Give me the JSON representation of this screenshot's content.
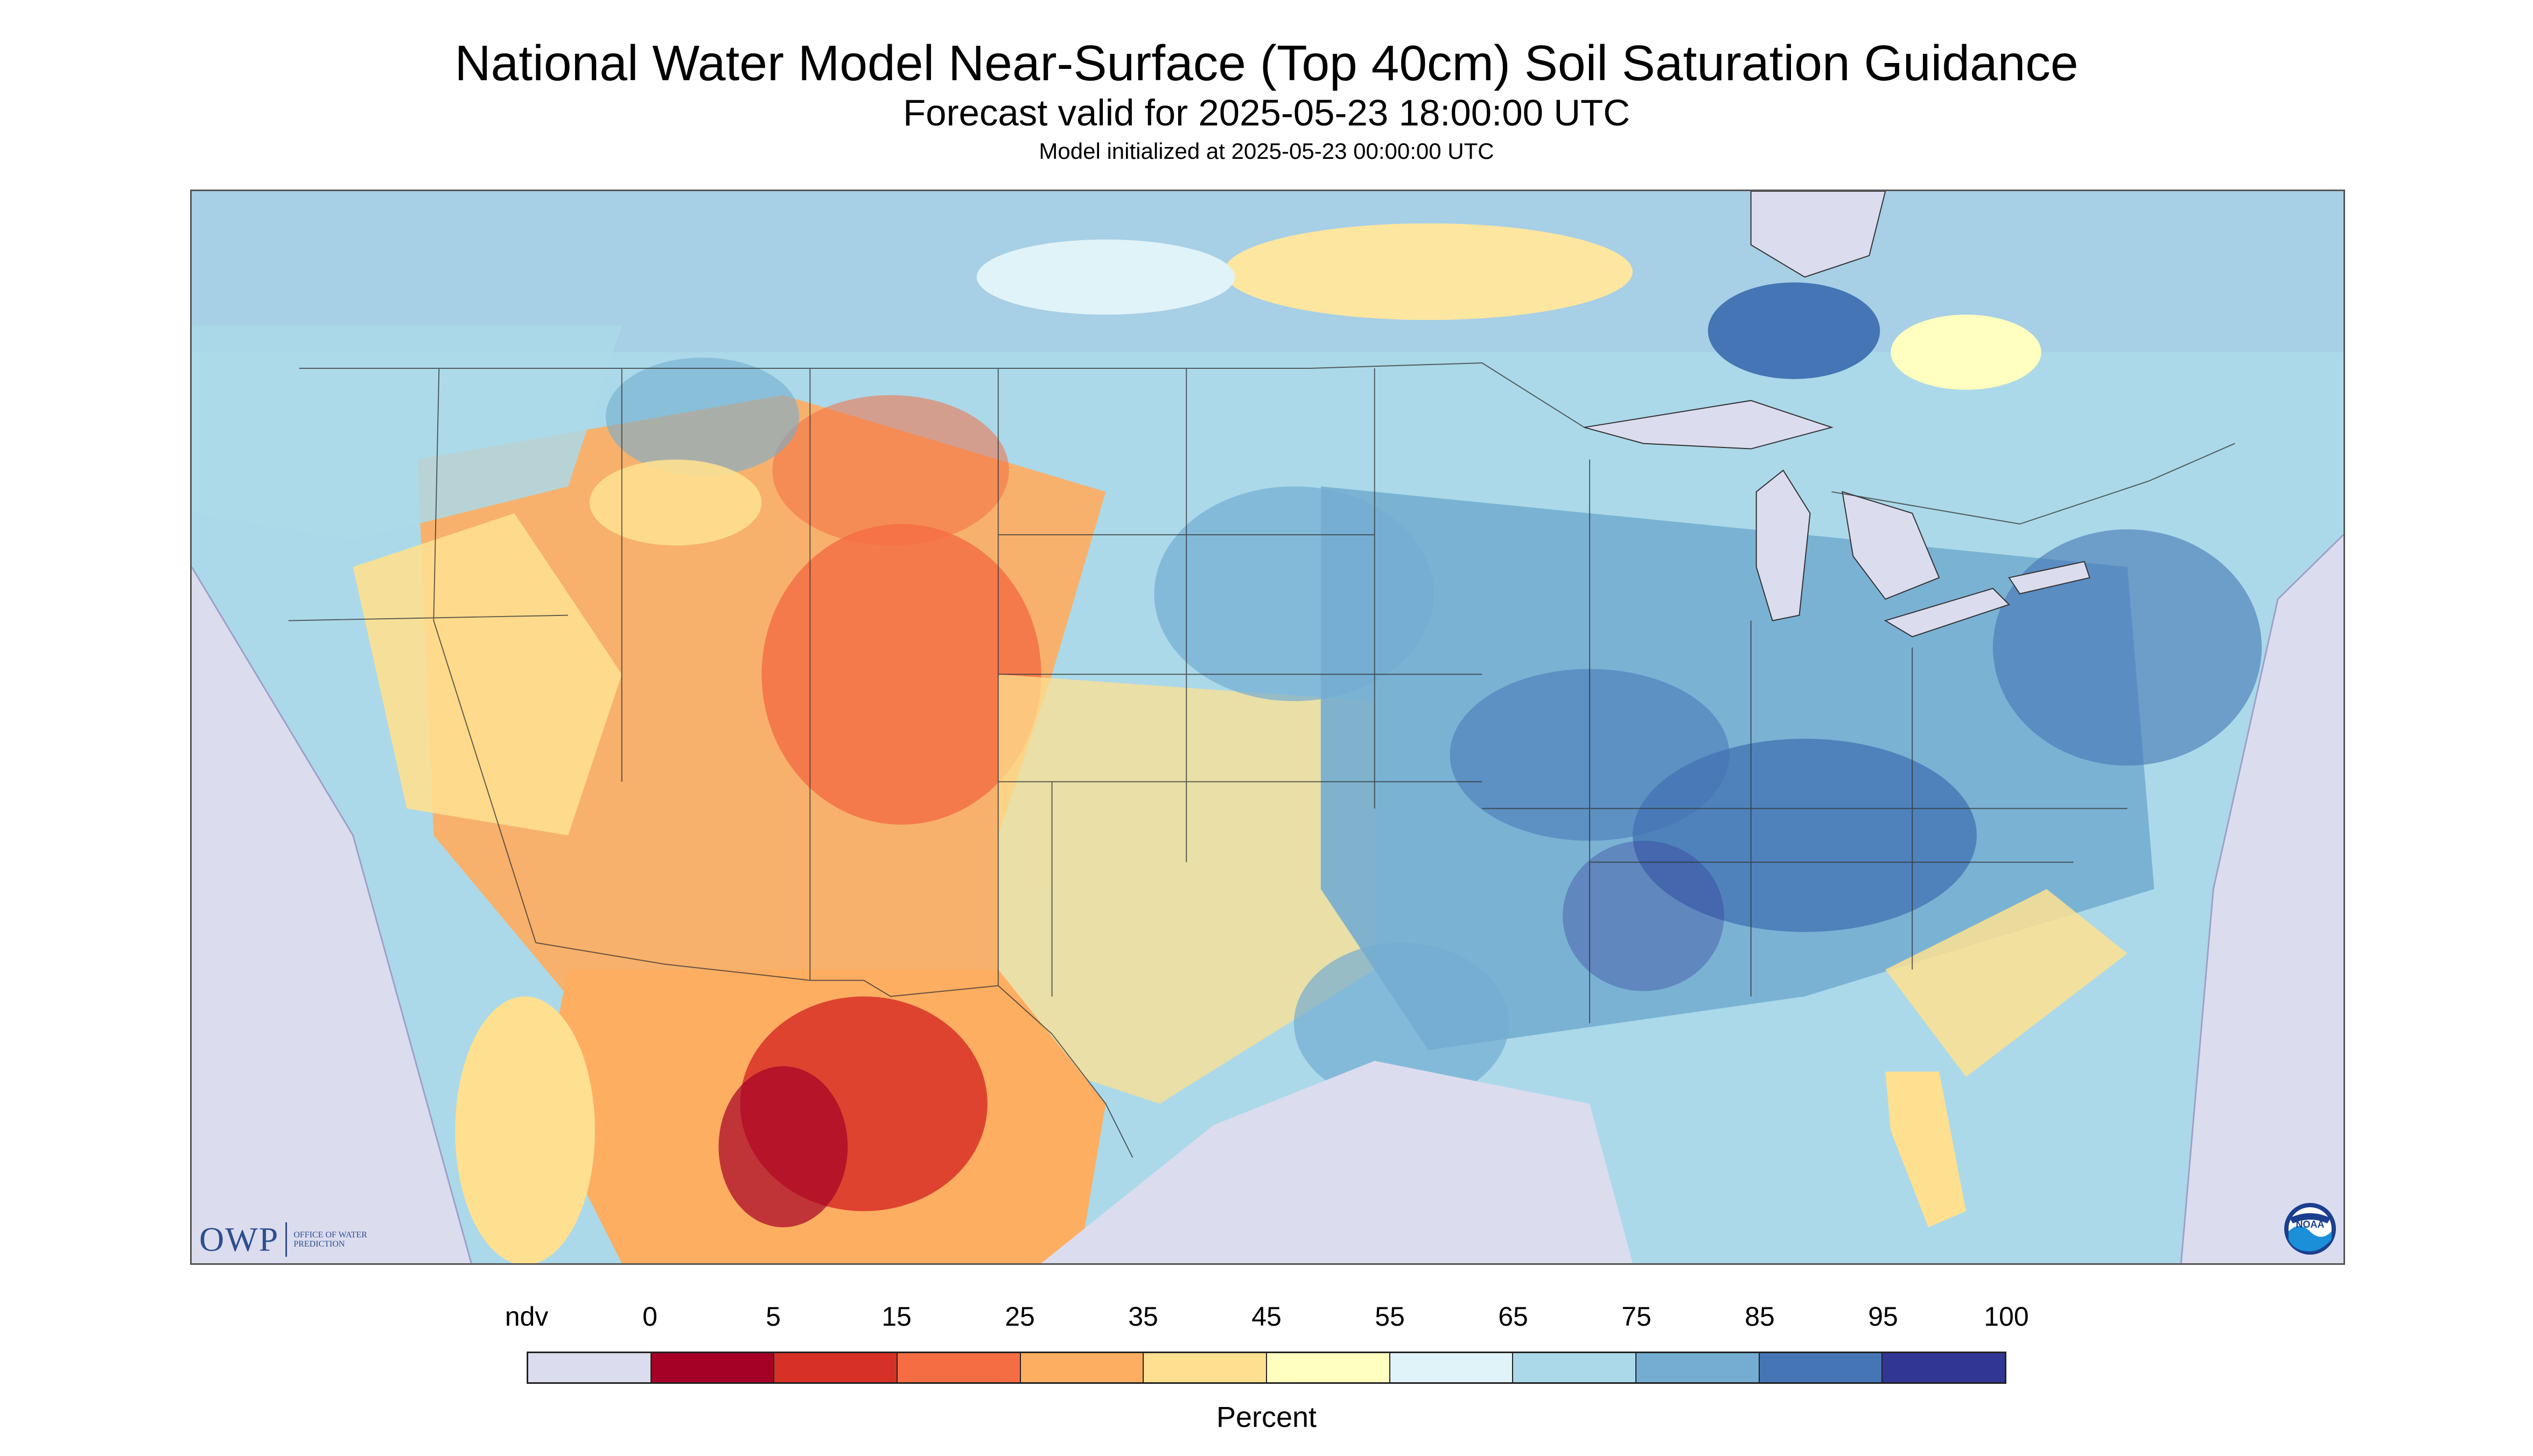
{
  "header": {
    "title": "National Water Model Near-Surface (Top 40cm) Soil Saturation Guidance",
    "forecast_valid": "Forecast valid for 2025-05-23 18:00:00 UTC",
    "model_initialized": "Model initialized at 2025-05-23 00:00:00 UTC"
  },
  "logos": {
    "owp_mark": "OWP",
    "owp_text": "OFFICE OF WATER PREDICTION",
    "noaa": "NOAA"
  },
  "legend": {
    "units_label": "Percent",
    "labels": [
      "ndv",
      "0",
      "5",
      "15",
      "25",
      "35",
      "45",
      "55",
      "65",
      "75",
      "85",
      "95",
      "100"
    ],
    "bins": [
      {
        "range": "ndv",
        "color": "#dcdcef"
      },
      {
        "range": "0-5",
        "color": "#a50026"
      },
      {
        "range": "5-15",
        "color": "#d73027"
      },
      {
        "range": "15-25",
        "color": "#f46d43"
      },
      {
        "range": "25-35",
        "color": "#fdae61"
      },
      {
        "range": "35-45",
        "color": "#fee090"
      },
      {
        "range": "45-55",
        "color": "#ffffbf"
      },
      {
        "range": "55-65",
        "color": "#e0f3f8"
      },
      {
        "range": "65-75",
        "color": "#abd9e9"
      },
      {
        "range": "75-85",
        "color": "#74add1"
      },
      {
        "range": "85-95",
        "color": "#4575b4"
      },
      {
        "range": "95-100",
        "color": "#313695"
      }
    ]
  },
  "map": {
    "variable": "soil saturation",
    "depth": "top 40cm",
    "colors": {
      "no_data": "#dcdcef",
      "water": "#dcdcef",
      "boundary": "#333333"
    }
  }
}
